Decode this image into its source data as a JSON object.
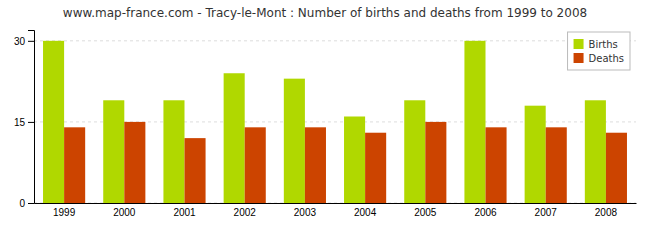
{
  "chart_data": {
    "type": "bar",
    "title": "www.map-france.com - Tracy-le-Mont : Number of births and deaths from 1999 to 2008",
    "categories": [
      "1999",
      "2000",
      "2001",
      "2002",
      "2003",
      "2004",
      "2005",
      "2006",
      "2007",
      "2008"
    ],
    "series": [
      {
        "name": "Births",
        "color": "#b0d800",
        "values": [
          30,
          19,
          19,
          24,
          23,
          16,
          19,
          30,
          18,
          19
        ]
      },
      {
        "name": "Deaths",
        "color": "#cc4400",
        "values": [
          14,
          15,
          12,
          14,
          14,
          13,
          15,
          14,
          14,
          13
        ]
      }
    ],
    "ylim": [
      0,
      32
    ],
    "yticks": [
      0,
      15,
      30
    ],
    "grid": true,
    "legend": "upper-right"
  }
}
